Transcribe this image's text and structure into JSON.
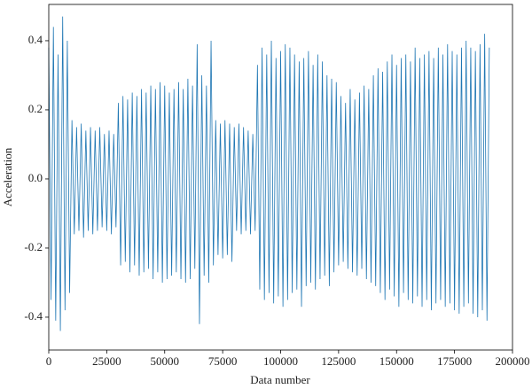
{
  "chart_data": {
    "type": "line",
    "x_label": "Data number",
    "y_label": "Acceleration",
    "color": "#1f77b4",
    "xlim": [
      0,
      200000
    ],
    "xticks": [
      0,
      25000,
      50000,
      75000,
      100000,
      125000,
      150000,
      175000,
      200000
    ],
    "ylim": [
      -0.495,
      0.505
    ],
    "yticks": [
      -0.4,
      -0.2,
      {
        "value": 0,
        "label": "0.0"
      },
      0.2,
      0.4
    ],
    "x": [
      0,
      1000,
      2000,
      3000,
      4000,
      5000,
      6000,
      7000,
      8000,
      9000,
      10000,
      11000,
      12000,
      13000,
      14000,
      15000,
      16000,
      17000,
      18000,
      19000,
      20000,
      21000,
      22000,
      23000,
      24000,
      25000,
      26000,
      27000,
      28000,
      29000,
      30000,
      31000,
      32000,
      33000,
      34000,
      35000,
      36000,
      37000,
      38000,
      39000,
      40000,
      41000,
      42000,
      43000,
      44000,
      45000,
      46000,
      47000,
      48000,
      49000,
      50000,
      51000,
      52000,
      53000,
      54000,
      55000,
      56000,
      57000,
      58000,
      59000,
      60000,
      61000,
      62000,
      63000,
      64000,
      65000,
      66000,
      67000,
      68000,
      69000,
      70000,
      71000,
      72000,
      73000,
      74000,
      75000,
      76000,
      77000,
      78000,
      79000,
      80000,
      81000,
      82000,
      83000,
      84000,
      85000,
      86000,
      87000,
      88000,
      89000,
      90000,
      91000,
      92000,
      93000,
      94000,
      95000,
      96000,
      97000,
      98000,
      99000,
      100000,
      101000,
      102000,
      103000,
      104000,
      105000,
      106000,
      107000,
      108000,
      109000,
      110000,
      111000,
      112000,
      113000,
      114000,
      115000,
      116000,
      117000,
      118000,
      119000,
      120000,
      121000,
      122000,
      123000,
      124000,
      125000,
      126000,
      127000,
      128000,
      129000,
      130000,
      131000,
      132000,
      133000,
      134000,
      135000,
      136000,
      137000,
      138000,
      139000,
      140000,
      141000,
      142000,
      143000,
      144000,
      145000,
      146000,
      147000,
      148000,
      149000,
      150000,
      151000,
      152000,
      153000,
      154000,
      155000,
      156000,
      157000,
      158000,
      159000,
      160000,
      161000,
      162000,
      163000,
      164000,
      165000,
      166000,
      167000,
      168000,
      169000,
      170000,
      171000,
      172000,
      173000,
      174000,
      175000,
      176000,
      177000,
      178000,
      179000,
      180000,
      181000,
      182000,
      183000,
      184000,
      185000,
      186000,
      187000,
      188000,
      189000,
      190000
    ],
    "values": [
      0.38,
      -0.35,
      0.44,
      -0.41,
      0.36,
      -0.44,
      0.47,
      -0.38,
      0.4,
      -0.33,
      0.17,
      -0.16,
      0.15,
      -0.15,
      0.16,
      -0.17,
      0.14,
      -0.15,
      0.15,
      -0.16,
      0.14,
      -0.15,
      0.15,
      -0.14,
      0.13,
      -0.15,
      0.14,
      -0.16,
      0.13,
      -0.14,
      0.22,
      -0.25,
      0.24,
      -0.24,
      0.23,
      -0.27,
      0.25,
      -0.25,
      0.24,
      -0.28,
      0.26,
      -0.27,
      0.25,
      -0.26,
      0.27,
      -0.29,
      0.26,
      -0.27,
      0.28,
      -0.3,
      0.27,
      -0.29,
      0.25,
      -0.28,
      0.26,
      -0.27,
      0.28,
      -0.29,
      0.26,
      -0.3,
      0.29,
      -0.29,
      0.27,
      -0.26,
      0.39,
      -0.42,
      0.3,
      -0.28,
      0.27,
      -0.3,
      0.4,
      -0.25,
      0.17,
      -0.22,
      0.16,
      -0.23,
      0.17,
      -0.22,
      0.16,
      -0.24,
      0.15,
      -0.15,
      0.16,
      -0.16,
      0.15,
      -0.15,
      0.14,
      -0.16,
      0.13,
      -0.15,
      0.33,
      -0.32,
      0.38,
      -0.35,
      0.36,
      -0.33,
      0.4,
      -0.36,
      0.35,
      -0.34,
      0.37,
      -0.37,
      0.39,
      -0.35,
      0.38,
      -0.33,
      0.36,
      -0.32,
      0.34,
      -0.37,
      0.35,
      -0.31,
      0.37,
      -0.3,
      0.33,
      -0.32,
      0.36,
      -0.29,
      0.34,
      -0.28,
      0.3,
      -0.31,
      0.29,
      -0.27,
      0.28,
      -0.25,
      0.24,
      -0.24,
      0.22,
      -0.26,
      0.26,
      -0.27,
      0.23,
      -0.28,
      0.25,
      -0.26,
      0.27,
      -0.29,
      0.26,
      -0.3,
      0.3,
      -0.31,
      0.32,
      -0.33,
      0.31,
      -0.35,
      0.34,
      -0.32,
      0.36,
      -0.34,
      0.33,
      -0.37,
      0.35,
      -0.33,
      0.36,
      -0.35,
      0.34,
      -0.36,
      0.38,
      -0.34,
      0.35,
      -0.37,
      0.36,
      -0.35,
      0.37,
      -0.38,
      0.35,
      -0.36,
      0.38,
      -0.35,
      0.36,
      -0.37,
      0.39,
      -0.36,
      0.37,
      -0.38,
      0.36,
      -0.39,
      0.38,
      -0.37,
      0.4,
      -0.36,
      0.38,
      -0.39,
      0.37,
      -0.4,
      0.39,
      -0.38,
      0.42,
      -0.41,
      0.38
    ]
  }
}
